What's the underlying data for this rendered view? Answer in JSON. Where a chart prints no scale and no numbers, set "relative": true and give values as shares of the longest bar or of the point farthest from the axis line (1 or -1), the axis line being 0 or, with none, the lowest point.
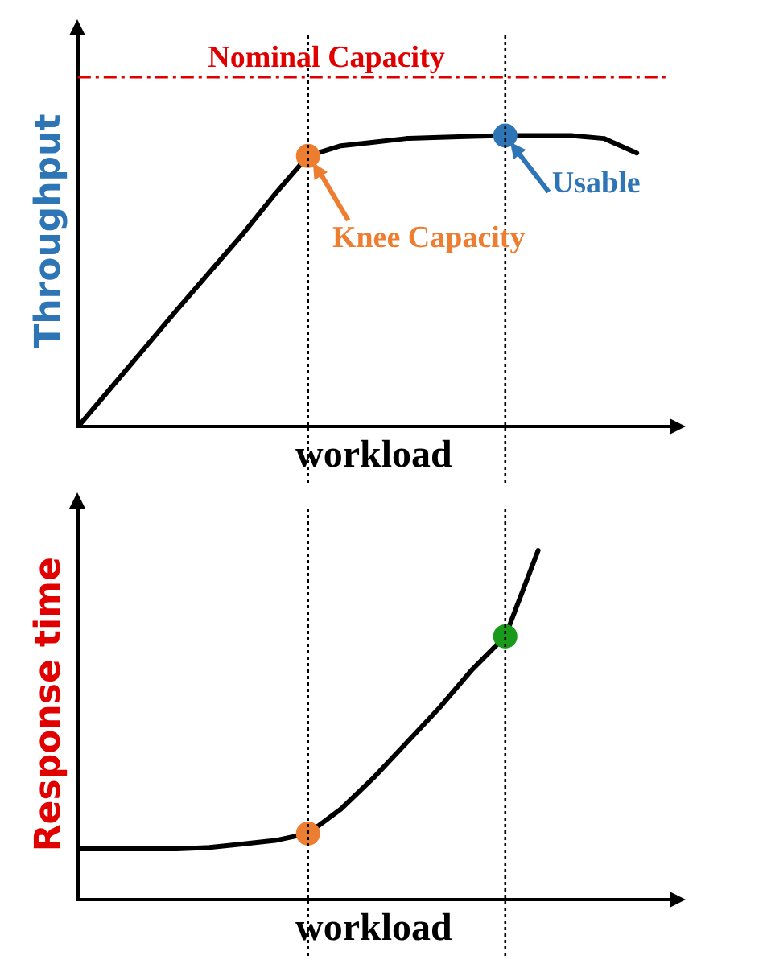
{
  "chart_data": [
    {
      "type": "line",
      "relative": true,
      "ylabel": "Throughput",
      "xlabel": "workload",
      "grid": false,
      "legend": false,
      "categories": [
        null,
        null,
        null,
        null,
        null,
        null,
        null,
        null,
        null,
        null,
        null,
        null,
        null,
        null,
        null,
        null,
        null,
        null
      ],
      "series": [
        {
          "color": "#000000",
          "values": [
            0,
            0.133,
            0.266,
            0.4,
            0.53,
            0.66,
            0.8,
            0.93,
            0.965,
            0.977,
            0.99,
            0.994,
            0.997,
            1,
            1,
            1,
            0.99,
            0.94
          ],
          "colors": [
            null,
            null,
            null,
            null,
            null,
            null,
            null,
            "#ed7d31",
            null,
            null,
            null,
            null,
            null,
            "#2e75b6",
            null,
            null,
            null,
            null
          ]
        }
      ],
      "ref_lines": [
        {
          "axis": "y",
          "value": 1.2,
          "label": "Nominal Capacity",
          "color": "#e00000",
          "line_style": "dashdot"
        }
      ],
      "annotations": [
        "Knee Capacity",
        "Usable"
      ]
    },
    {
      "type": "line",
      "relative": true,
      "ylabel": "Response time",
      "xlabel": "workload",
      "grid": false,
      "legend": false,
      "categories": [
        null,
        null,
        null,
        null,
        null,
        null,
        null,
        null,
        null,
        null,
        null,
        null,
        null,
        null,
        null,
        null,
        null,
        null
      ],
      "series": [
        {
          "color": "#000000",
          "values": [
            0.146,
            0.146,
            0.146,
            0.146,
            0.15,
            0.16,
            0.17,
            0.19,
            0.26,
            0.35,
            0.45,
            0.55,
            0.66,
            0.754,
            1,
            null,
            null,
            null
          ],
          "colors": [
            null,
            null,
            null,
            null,
            null,
            null,
            null,
            "#ed7d31",
            null,
            null,
            null,
            null,
            null,
            "#1a9a1a",
            null,
            null,
            null,
            null
          ]
        }
      ]
    }
  ]
}
